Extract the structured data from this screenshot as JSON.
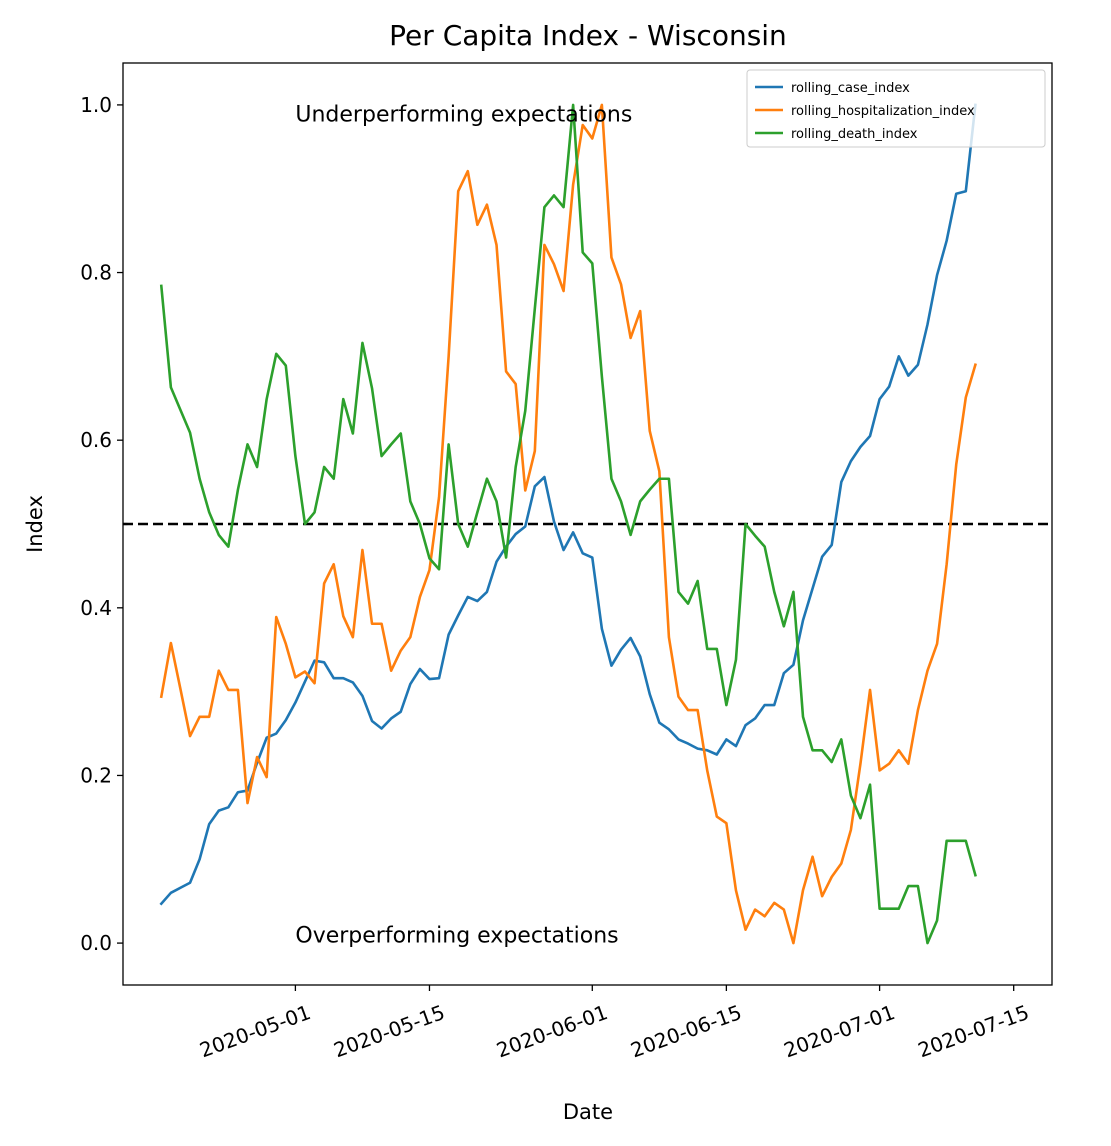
{
  "chart_data": {
    "type": "line",
    "title": "Per Capita Index - Wisconsin",
    "xlabel": "Date",
    "ylabel": "Index",
    "x_start_date": "2020-04-17",
    "x_step_days": 1,
    "xlim": [
      "2020-04-13",
      "2020-07-19"
    ],
    "ylim": [
      -0.05,
      1.05
    ],
    "x_ticks": [
      "2020-05-01",
      "2020-05-15",
      "2020-06-01",
      "2020-06-15",
      "2020-07-01",
      "2020-07-15"
    ],
    "y_ticks": [
      0.0,
      0.2,
      0.4,
      0.6,
      0.8,
      1.0
    ],
    "y_tick_labels": [
      "0.0",
      "0.2",
      "0.4",
      "0.6",
      "0.8",
      "1.0"
    ],
    "reference_line": {
      "y": 0.5,
      "style": "dashed",
      "color": "#000000"
    },
    "annotations": [
      {
        "text": "Underperforming expectations",
        "date": "2020-05-01",
        "y": 0.99
      },
      {
        "text": "Overperforming expectations",
        "date": "2020-05-01",
        "y": 0.01
      }
    ],
    "legend": {
      "placement": "top-right"
    },
    "series": [
      {
        "name": "rolling_case_index",
        "color": "#1f77b4",
        "values": [
          0.047,
          0.06,
          0.066,
          0.072,
          0.1,
          0.142,
          0.158,
          0.162,
          0.18,
          0.182,
          0.215,
          0.245,
          0.25,
          0.266,
          0.287,
          0.312,
          0.337,
          0.335,
          0.316,
          0.316,
          0.311,
          0.295,
          0.265,
          0.256,
          0.268,
          0.276,
          0.309,
          0.327,
          0.315,
          0.316,
          0.368,
          0.391,
          0.413,
          0.408,
          0.419,
          0.455,
          0.473,
          0.488,
          0.497,
          0.545,
          0.556,
          0.503,
          0.469,
          0.49,
          0.465,
          0.46,
          0.375,
          0.331,
          0.35,
          0.364,
          0.342,
          0.297,
          0.263,
          0.255,
          0.243,
          0.238,
          0.232,
          0.23,
          0.225,
          0.243,
          0.235,
          0.26,
          0.268,
          0.284,
          0.284,
          0.322,
          0.332,
          0.385,
          0.423,
          0.461,
          0.475,
          0.55,
          0.575,
          0.592,
          0.605,
          0.649,
          0.664,
          0.7,
          0.677,
          0.69,
          0.738,
          0.797,
          0.838,
          0.894,
          0.897,
          1.0
        ]
      },
      {
        "name": "rolling_hospitalization_index",
        "color": "#ff7f0e",
        "values": [
          0.294,
          0.358,
          0.303,
          0.247,
          0.27,
          0.27,
          0.325,
          0.302,
          0.302,
          0.167,
          0.222,
          0.198,
          0.389,
          0.357,
          0.317,
          0.324,
          0.31,
          0.429,
          0.452,
          0.39,
          0.365,
          0.469,
          0.381,
          0.381,
          0.325,
          0.349,
          0.365,
          0.413,
          0.445,
          0.532,
          0.7,
          0.897,
          0.921,
          0.857,
          0.881,
          0.833,
          0.682,
          0.667,
          0.54,
          0.587,
          0.833,
          0.81,
          0.778,
          0.905,
          0.976,
          0.96,
          1.0,
          0.818,
          0.786,
          0.722,
          0.754,
          0.611,
          0.563,
          0.365,
          0.294,
          0.278,
          0.278,
          0.206,
          0.151,
          0.143,
          0.063,
          0.016,
          0.04,
          0.032,
          0.048,
          0.04,
          0.0,
          0.063,
          0.103,
          0.056,
          0.079,
          0.095,
          0.135,
          0.214,
          0.302,
          0.206,
          0.214,
          0.23,
          0.214,
          0.278,
          0.325,
          0.357,
          0.452,
          0.571,
          0.651,
          0.69
        ]
      },
      {
        "name": "rolling_death_index",
        "color": "#2ca02c",
        "values": [
          0.784,
          0.663,
          0.636,
          0.609,
          0.554,
          0.514,
          0.487,
          0.473,
          0.541,
          0.595,
          0.568,
          0.649,
          0.703,
          0.689,
          0.581,
          0.5,
          0.514,
          0.568,
          0.554,
          0.649,
          0.608,
          0.716,
          0.662,
          0.581,
          0.595,
          0.608,
          0.527,
          0.5,
          0.459,
          0.446,
          0.595,
          0.5,
          0.473,
          0.514,
          0.554,
          0.527,
          0.46,
          0.568,
          0.635,
          0.757,
          0.878,
          0.892,
          0.878,
          1.0,
          0.824,
          0.811,
          0.676,
          0.554,
          0.527,
          0.487,
          0.527,
          0.541,
          0.554,
          0.554,
          0.419,
          0.405,
          0.432,
          0.351,
          0.351,
          0.284,
          0.338,
          0.5,
          0.486,
          0.473,
          0.419,
          0.378,
          0.419,
          0.27,
          0.23,
          0.23,
          0.216,
          0.243,
          0.176,
          0.149,
          0.189,
          0.041,
          0.041,
          0.041,
          0.068,
          0.068,
          0.0,
          0.027,
          0.122,
          0.122,
          0.122,
          0.081
        ]
      }
    ]
  }
}
